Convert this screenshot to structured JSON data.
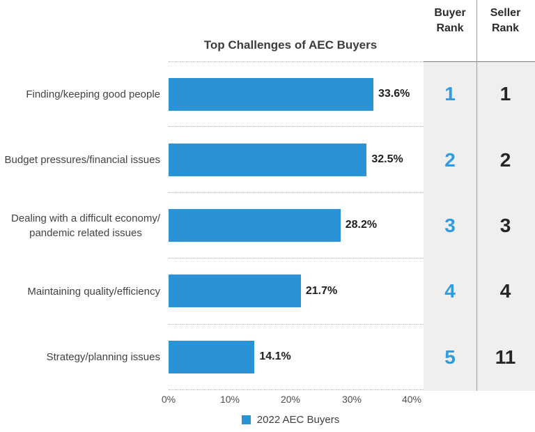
{
  "title": "Top Challenges of AEC Buyers",
  "rank_table": {
    "buyer_header": "Buyer\nRank",
    "seller_header": "Seller\nRank"
  },
  "colors": {
    "bar_blue": "#2a93d8",
    "buyer_rank_blue": "#2e9be2",
    "seller_rank_dark": "#252525",
    "rank_panel_gray": "#f0efed"
  },
  "chart_data": {
    "type": "bar",
    "orientation": "horizontal",
    "title": "Top Challenges of AEC Buyers",
    "xlabel": "",
    "ylabel": "",
    "xlim": [
      0,
      40
    ],
    "x_ticks": [
      "0%",
      "10%",
      "20%",
      "30%",
      "40%"
    ],
    "grid": "dotted row separators",
    "legend_position": "bottom-center",
    "legend_label": "2022 AEC Buyers",
    "rows": [
      {
        "label": "Finding/keeping good people",
        "value": 33.6,
        "value_label": "33.6%",
        "buyer_rank": "1",
        "seller_rank": "1"
      },
      {
        "label": "Budget pressures/financial issues",
        "value": 32.5,
        "value_label": "32.5%",
        "buyer_rank": "2",
        "seller_rank": "2"
      },
      {
        "label": "Dealing with a difficult economy/\npandemic related issues",
        "value": 28.2,
        "value_label": "28.2%",
        "buyer_rank": "3",
        "seller_rank": "3"
      },
      {
        "label": "Maintaining quality/efficiency",
        "value": 21.7,
        "value_label": "21.7%",
        "buyer_rank": "4",
        "seller_rank": "4"
      },
      {
        "label": "Strategy/planning issues",
        "value": 14.1,
        "value_label": "14.1%",
        "buyer_rank": "5",
        "seller_rank": "11"
      }
    ]
  }
}
